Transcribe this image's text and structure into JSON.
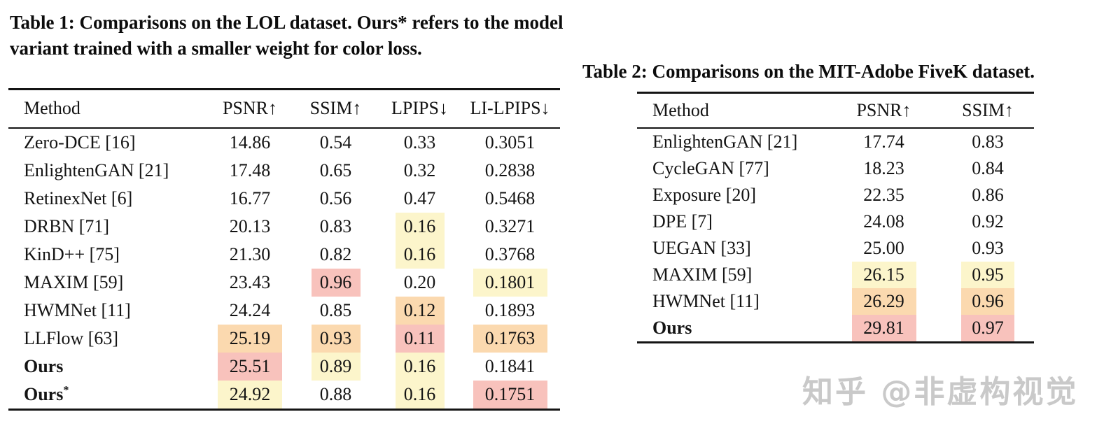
{
  "colors": {
    "highlight_pink": "#f8c2bc",
    "highlight_orange": "#fbd9af",
    "highlight_yellow": "#fcf5cb",
    "rule_black": "#141414",
    "watermark_gray": "#c9c9c9"
  },
  "watermark": {
    "text": "知乎 @非虚构视觉"
  },
  "tables": [
    {
      "id": "lol-comparison-table",
      "caption": "Table 1: Comparisons on the LOL dataset. Ours* refers to the model variant trained with a smaller weight for color loss.",
      "columns": [
        "Method",
        "PSNR↑",
        "SSIM↑",
        "LPIPS↓",
        "LI-LPIPS↓"
      ],
      "rows": [
        {
          "method": "Zero-DCE [16]",
          "bold": false,
          "values": [
            "14.86",
            "0.54",
            "0.33",
            "0.3051"
          ],
          "highlights": [
            "none",
            "none",
            "none",
            "none"
          ]
        },
        {
          "method": "EnlightenGAN [21]",
          "bold": false,
          "values": [
            "17.48",
            "0.65",
            "0.32",
            "0.2838"
          ],
          "highlights": [
            "none",
            "none",
            "none",
            "none"
          ]
        },
        {
          "method": "RetinexNet [6]",
          "bold": false,
          "values": [
            "16.77",
            "0.56",
            "0.47",
            "0.5468"
          ],
          "highlights": [
            "none",
            "none",
            "none",
            "none"
          ]
        },
        {
          "method": "DRBN [71]",
          "bold": false,
          "values": [
            "20.13",
            "0.83",
            "0.16",
            "0.3271"
          ],
          "highlights": [
            "none",
            "none",
            "yellow",
            "none"
          ]
        },
        {
          "method": "KinD++ [75]",
          "bold": false,
          "values": [
            "21.30",
            "0.82",
            "0.16",
            "0.3768"
          ],
          "highlights": [
            "none",
            "none",
            "yellow",
            "none"
          ]
        },
        {
          "method": "MAXIM [59]",
          "bold": false,
          "values": [
            "23.43",
            "0.96",
            "0.20",
            "0.1801"
          ],
          "highlights": [
            "none",
            "pink",
            "none",
            "yellow"
          ]
        },
        {
          "method": "HWMNet [11]",
          "bold": false,
          "values": [
            "24.24",
            "0.85",
            "0.12",
            "0.1893"
          ],
          "highlights": [
            "none",
            "none",
            "orange",
            "none"
          ]
        },
        {
          "method": "LLFlow [63]",
          "bold": false,
          "values": [
            "25.19",
            "0.93",
            "0.11",
            "0.1763"
          ],
          "highlights": [
            "orange",
            "orange",
            "pink",
            "orange"
          ]
        },
        {
          "method": "Ours",
          "bold": true,
          "values": [
            "25.51",
            "0.89",
            "0.16",
            "0.1841"
          ],
          "highlights": [
            "pink",
            "yellow",
            "yellow",
            "none"
          ]
        },
        {
          "method": "Ours*",
          "bold": true,
          "values": [
            "24.92",
            "0.88",
            "0.16",
            "0.1751"
          ],
          "highlights": [
            "yellow",
            "none",
            "yellow",
            "pink"
          ]
        }
      ]
    },
    {
      "id": "fivek-comparison-table",
      "caption": "Table 2: Comparisons on the MIT-Adobe FiveK dataset.",
      "columns": [
        "Method",
        "PSNR↑",
        "SSIM↑"
      ],
      "rows": [
        {
          "method": "EnlightenGAN [21]",
          "bold": false,
          "values": [
            "17.74",
            "0.83"
          ],
          "highlights": [
            "none",
            "none"
          ]
        },
        {
          "method": "CycleGAN [77]",
          "bold": false,
          "values": [
            "18.23",
            "0.84"
          ],
          "highlights": [
            "none",
            "none"
          ]
        },
        {
          "method": "Exposure [20]",
          "bold": false,
          "values": [
            "22.35",
            "0.86"
          ],
          "highlights": [
            "none",
            "none"
          ]
        },
        {
          "method": "DPE [7]",
          "bold": false,
          "values": [
            "24.08",
            "0.92"
          ],
          "highlights": [
            "none",
            "none"
          ]
        },
        {
          "method": "UEGAN [33]",
          "bold": false,
          "values": [
            "25.00",
            "0.93"
          ],
          "highlights": [
            "none",
            "none"
          ]
        },
        {
          "method": "MAXIM [59]",
          "bold": false,
          "values": [
            "26.15",
            "0.95"
          ],
          "highlights": [
            "yellow",
            "yellow"
          ]
        },
        {
          "method": "HWMNet [11]",
          "bold": false,
          "values": [
            "26.29",
            "0.96"
          ],
          "highlights": [
            "orange",
            "orange"
          ]
        },
        {
          "method": "Ours",
          "bold": true,
          "values": [
            "29.81",
            "0.97"
          ],
          "highlights": [
            "pink",
            "pink"
          ]
        }
      ]
    }
  ]
}
